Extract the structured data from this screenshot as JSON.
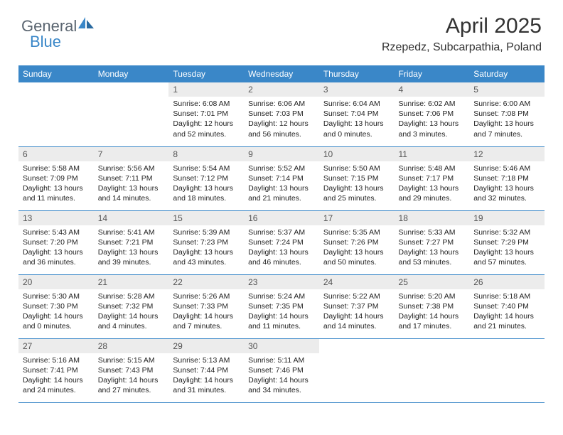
{
  "logo": {
    "general": "General",
    "blue": "Blue"
  },
  "header": {
    "title": "April 2025",
    "location": "Rzepedz, Subcarpathia, Poland"
  },
  "colors": {
    "accent": "#3a87c8",
    "dayNumBg": "#ececec",
    "text": "#222",
    "headerText": "#ffffff"
  },
  "weekdays": [
    "Sunday",
    "Monday",
    "Tuesday",
    "Wednesday",
    "Thursday",
    "Friday",
    "Saturday"
  ],
  "weeks": [
    [
      null,
      null,
      {
        "num": "1",
        "sunrise": "6:08 AM",
        "sunset": "7:01 PM",
        "daylight": "12 hours and 52 minutes."
      },
      {
        "num": "2",
        "sunrise": "6:06 AM",
        "sunset": "7:03 PM",
        "daylight": "12 hours and 56 minutes."
      },
      {
        "num": "3",
        "sunrise": "6:04 AM",
        "sunset": "7:04 PM",
        "daylight": "13 hours and 0 minutes."
      },
      {
        "num": "4",
        "sunrise": "6:02 AM",
        "sunset": "7:06 PM",
        "daylight": "13 hours and 3 minutes."
      },
      {
        "num": "5",
        "sunrise": "6:00 AM",
        "sunset": "7:08 PM",
        "daylight": "13 hours and 7 minutes."
      }
    ],
    [
      {
        "num": "6",
        "sunrise": "5:58 AM",
        "sunset": "7:09 PM",
        "daylight": "13 hours and 11 minutes."
      },
      {
        "num": "7",
        "sunrise": "5:56 AM",
        "sunset": "7:11 PM",
        "daylight": "13 hours and 14 minutes."
      },
      {
        "num": "8",
        "sunrise": "5:54 AM",
        "sunset": "7:12 PM",
        "daylight": "13 hours and 18 minutes."
      },
      {
        "num": "9",
        "sunrise": "5:52 AM",
        "sunset": "7:14 PM",
        "daylight": "13 hours and 21 minutes."
      },
      {
        "num": "10",
        "sunrise": "5:50 AM",
        "sunset": "7:15 PM",
        "daylight": "13 hours and 25 minutes."
      },
      {
        "num": "11",
        "sunrise": "5:48 AM",
        "sunset": "7:17 PM",
        "daylight": "13 hours and 29 minutes."
      },
      {
        "num": "12",
        "sunrise": "5:46 AM",
        "sunset": "7:18 PM",
        "daylight": "13 hours and 32 minutes."
      }
    ],
    [
      {
        "num": "13",
        "sunrise": "5:43 AM",
        "sunset": "7:20 PM",
        "daylight": "13 hours and 36 minutes."
      },
      {
        "num": "14",
        "sunrise": "5:41 AM",
        "sunset": "7:21 PM",
        "daylight": "13 hours and 39 minutes."
      },
      {
        "num": "15",
        "sunrise": "5:39 AM",
        "sunset": "7:23 PM",
        "daylight": "13 hours and 43 minutes."
      },
      {
        "num": "16",
        "sunrise": "5:37 AM",
        "sunset": "7:24 PM",
        "daylight": "13 hours and 46 minutes."
      },
      {
        "num": "17",
        "sunrise": "5:35 AM",
        "sunset": "7:26 PM",
        "daylight": "13 hours and 50 minutes."
      },
      {
        "num": "18",
        "sunrise": "5:33 AM",
        "sunset": "7:27 PM",
        "daylight": "13 hours and 53 minutes."
      },
      {
        "num": "19",
        "sunrise": "5:32 AM",
        "sunset": "7:29 PM",
        "daylight": "13 hours and 57 minutes."
      }
    ],
    [
      {
        "num": "20",
        "sunrise": "5:30 AM",
        "sunset": "7:30 PM",
        "daylight": "14 hours and 0 minutes."
      },
      {
        "num": "21",
        "sunrise": "5:28 AM",
        "sunset": "7:32 PM",
        "daylight": "14 hours and 4 minutes."
      },
      {
        "num": "22",
        "sunrise": "5:26 AM",
        "sunset": "7:33 PM",
        "daylight": "14 hours and 7 minutes."
      },
      {
        "num": "23",
        "sunrise": "5:24 AM",
        "sunset": "7:35 PM",
        "daylight": "14 hours and 11 minutes."
      },
      {
        "num": "24",
        "sunrise": "5:22 AM",
        "sunset": "7:37 PM",
        "daylight": "14 hours and 14 minutes."
      },
      {
        "num": "25",
        "sunrise": "5:20 AM",
        "sunset": "7:38 PM",
        "daylight": "14 hours and 17 minutes."
      },
      {
        "num": "26",
        "sunrise": "5:18 AM",
        "sunset": "7:40 PM",
        "daylight": "14 hours and 21 minutes."
      }
    ],
    [
      {
        "num": "27",
        "sunrise": "5:16 AM",
        "sunset": "7:41 PM",
        "daylight": "14 hours and 24 minutes."
      },
      {
        "num": "28",
        "sunrise": "5:15 AM",
        "sunset": "7:43 PM",
        "daylight": "14 hours and 27 minutes."
      },
      {
        "num": "29",
        "sunrise": "5:13 AM",
        "sunset": "7:44 PM",
        "daylight": "14 hours and 31 minutes."
      },
      {
        "num": "30",
        "sunrise": "5:11 AM",
        "sunset": "7:46 PM",
        "daylight": "14 hours and 34 minutes."
      },
      null,
      null,
      null
    ]
  ],
  "labels": {
    "sunrise": "Sunrise: ",
    "sunset": "Sunset: ",
    "daylight": "Daylight: "
  }
}
